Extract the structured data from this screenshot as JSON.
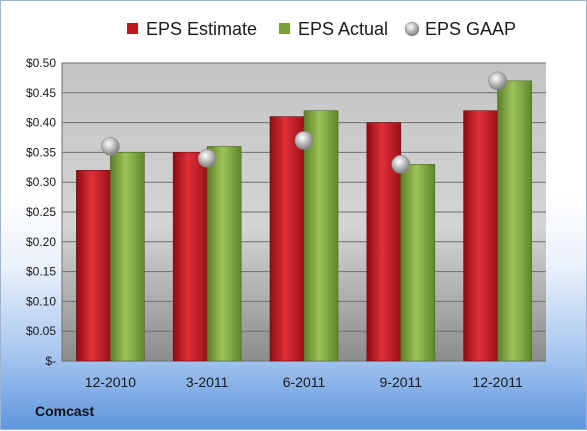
{
  "chart_data": {
    "type": "bar",
    "title": "",
    "xlabel": "",
    "ylabel": "",
    "categories": [
      "12-2010",
      "3-2011",
      "6-2011",
      "9-2011",
      "12-2011"
    ],
    "series": [
      {
        "name": "EPS Estimate",
        "kind": "bar",
        "color": "#c0151c",
        "values": [
          0.32,
          0.35,
          0.41,
          0.4,
          0.42
        ]
      },
      {
        "name": "EPS Actual",
        "kind": "bar",
        "color": "#7aa23a",
        "values": [
          0.35,
          0.36,
          0.42,
          0.33,
          0.47
        ]
      },
      {
        "name": "EPS GAAP",
        "kind": "scatter",
        "color": "#b5b5b5",
        "values": [
          0.36,
          0.34,
          0.37,
          0.33,
          0.47
        ]
      }
    ],
    "ylim": [
      0,
      0.5
    ],
    "yticks": [
      "$-",
      "$0.05",
      "$0.10",
      "$0.15",
      "$0.20",
      "$0.25",
      "$0.30",
      "$0.35",
      "$0.40",
      "$0.45",
      "$0.50"
    ],
    "grid": true,
    "legend_position": "top"
  },
  "footer": {
    "company": "Comcast"
  }
}
